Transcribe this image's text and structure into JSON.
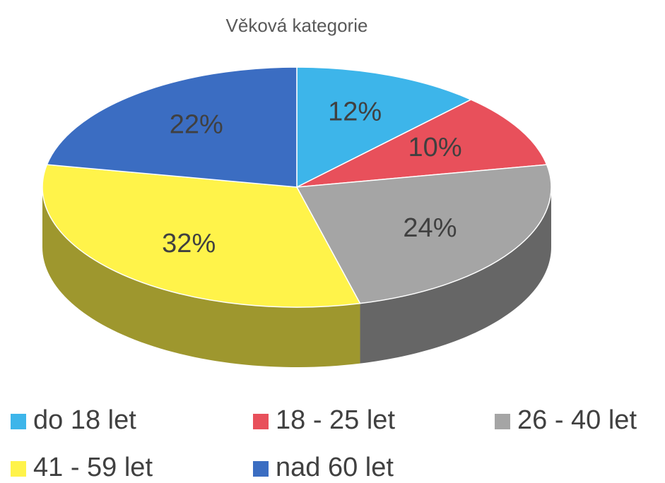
{
  "chart_data": {
    "type": "pie",
    "title": "Věková kategorie",
    "categories": [
      "do 18 let",
      "18 - 25 let",
      "26 - 40 let",
      "41 - 59 let",
      "nad 60 let"
    ],
    "values": [
      12,
      10,
      24,
      32,
      22
    ],
    "value_labels": [
      "12%",
      "10%",
      "24%",
      "32%",
      "22%"
    ],
    "colors": [
      "#3db5ea",
      "#e8505b",
      "#a5a5a5",
      "#fff34a",
      "#3b6dc2"
    ],
    "legend": "bottom"
  }
}
